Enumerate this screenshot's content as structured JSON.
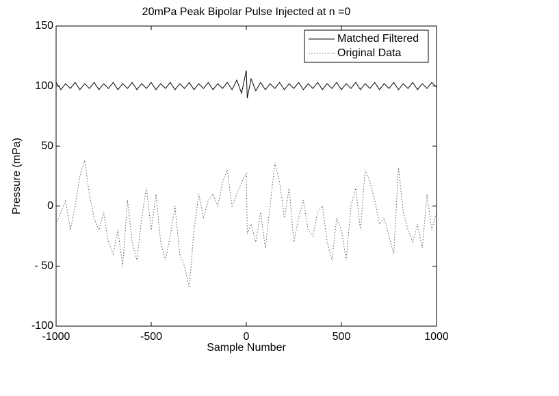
{
  "chart_data": {
    "type": "line",
    "title": "20mPa Peak Bipolar Pulse Injected at n =0",
    "xlabel": "Sample Number",
    "ylabel": "Pressure (mPa)",
    "x": [
      -1000,
      -975,
      -950,
      -925,
      -900,
      -875,
      -850,
      -825,
      -800,
      -775,
      -750,
      -725,
      -700,
      -675,
      -650,
      -625,
      -600,
      -575,
      -550,
      -525,
      -500,
      -475,
      -450,
      -425,
      -400,
      -375,
      -350,
      -325,
      -300,
      -275,
      -250,
      -225,
      -200,
      -175,
      -150,
      -125,
      -100,
      -75,
      -50,
      -25,
      0,
      5,
      25,
      50,
      75,
      100,
      125,
      150,
      175,
      200,
      225,
      250,
      275,
      300,
      325,
      350,
      375,
      400,
      425,
      450,
      475,
      500,
      525,
      550,
      575,
      600,
      625,
      650,
      675,
      700,
      725,
      750,
      775,
      800,
      825,
      850,
      875,
      900,
      925,
      950,
      975,
      1000
    ],
    "series": [
      {
        "name": "Matched Filtered",
        "color": "#000000",
        "dash": "solid",
        "values": [
          103,
          97,
          102,
          98,
          103,
          97,
          102,
          98,
          103,
          97,
          102,
          98,
          103,
          97,
          102,
          98,
          103,
          97,
          102,
          98,
          103,
          97,
          102,
          98,
          103,
          97,
          102,
          98,
          103,
          97,
          102,
          98,
          103,
          97,
          102,
          98,
          103,
          97,
          105,
          94,
          113,
          90,
          106,
          96,
          103,
          97,
          102,
          98,
          103,
          97,
          102,
          98,
          103,
          97,
          102,
          98,
          103,
          97,
          102,
          98,
          103,
          97,
          102,
          98,
          103,
          97,
          102,
          98,
          103,
          97,
          102,
          98,
          103,
          97,
          102,
          98,
          103,
          97,
          102,
          98,
          103,
          99
        ]
      },
      {
        "name": "Original Data",
        "color": "#555555",
        "dash": "dotted",
        "values": [
          -15,
          -5,
          5,
          -20,
          0,
          25,
          38,
          10,
          -10,
          -20,
          -5,
          -30,
          -40,
          -20,
          -50,
          5,
          -30,
          -45,
          -10,
          15,
          -20,
          10,
          -30,
          -45,
          -25,
          0,
          -40,
          -50,
          -68,
          -20,
          10,
          -10,
          5,
          10,
          0,
          20,
          30,
          0,
          10,
          20,
          27,
          -23,
          -15,
          -30,
          -5,
          -35,
          0,
          36,
          20,
          -10,
          15,
          -30,
          -10,
          5,
          -20,
          -25,
          -5,
          0,
          -30,
          -45,
          -10,
          -20,
          -45,
          0,
          15,
          -20,
          30,
          20,
          5,
          -15,
          -10,
          -25,
          -40,
          32,
          -5,
          -20,
          -30,
          -15,
          -35,
          10,
          -20,
          -5
        ]
      }
    ],
    "xlim": [
      -1000,
      1000
    ],
    "xticks": [
      -1000,
      -500,
      0,
      500,
      1000
    ],
    "ylim": [
      -100,
      150
    ],
    "yticks": [
      -100,
      {
        "value": -50,
        "label": "- 50"
      },
      0,
      50,
      100,
      150
    ],
    "grid": false,
    "legend": "upper right"
  }
}
